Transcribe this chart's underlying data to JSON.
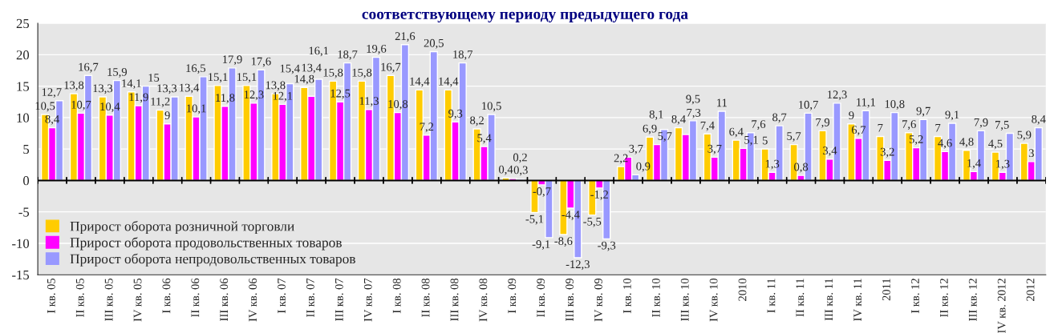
{
  "chart_data": {
    "type": "bar",
    "title": "соответствующему периоду предыдущего года",
    "categories": [
      "I кв. 05",
      "II кв. 05",
      "III кв. 05",
      "IV кв. 05",
      "I кв. 06",
      "II кв. 06",
      "III кв. 06",
      "IV кв. 06",
      "I кв. 07",
      "II кв. 07",
      "III кв. 07",
      "IV кв. 07",
      "I кв. 08",
      "II кв. 08",
      "III кв. 08",
      "IV кв. 08",
      "I кв. 09",
      "II кв. 09",
      "III кв. 09",
      "IV кв. 09",
      "I кв. 10",
      "II кв. 10",
      "III кв. 10",
      "IV кв. 10",
      "2010",
      "I кв. 11",
      "II кв. 11",
      "III кв. 11",
      "IV кв. 11",
      "2011",
      "I кв. 12",
      "II кв. 12",
      "III кв. 12",
      "IV кв. 2012",
      "2012"
    ],
    "series": [
      {
        "name": "Прирост оборота розничной торговли",
        "color": "#ffcc00",
        "values": [
          10.5,
          13.8,
          13.3,
          14.1,
          11.2,
          13.4,
          15.1,
          15.1,
          13.8,
          14.8,
          15.8,
          15.8,
          16.7,
          14.4,
          14.4,
          8.2,
          0.4,
          -5.1,
          -8.6,
          -5.5,
          2.2,
          6.9,
          8.4,
          7.4,
          6.4,
          5,
          5.7,
          7.9,
          9,
          7,
          7.6,
          7,
          4.8,
          4.5,
          5.9
        ],
        "value_labels": [
          "10,5",
          "13,8",
          "13,3",
          "14,1",
          "11,2",
          "13,4",
          "15,1",
          "15,1",
          "13,8",
          "14,8",
          "15,8",
          "15,8",
          "16,7",
          "14,4",
          "14,4",
          "8,2",
          "0,4",
          "-5,1",
          "-8,6",
          "-5,5",
          "2,2",
          "6,9",
          "8,4",
          "7,4",
          "6,4",
          "5",
          "5,7",
          "7,9",
          "9",
          "7",
          "7,6",
          "7",
          "4,8",
          "4,5",
          "5,9"
        ]
      },
      {
        "name": "Прирост оборота продовольственных товаров",
        "color": "#ff00ff",
        "values": [
          8.4,
          10.7,
          10.4,
          11.9,
          9,
          10.1,
          11.8,
          12.3,
          12.1,
          13.4,
          12.5,
          11.3,
          10.8,
          7.2,
          9.3,
          5.4,
          0.3,
          -0.7,
          -4.4,
          -1.2,
          3.7,
          5.7,
          7.3,
          3.7,
          5.1,
          1.3,
          0.8,
          3.4,
          6.7,
          3.2,
          5.2,
          4.6,
          1.4,
          1.3,
          3
        ],
        "value_labels": [
          "8,4",
          "10,7",
          "10,4",
          "11,9",
          "9",
          "10,1",
          "11,8",
          "12,3",
          "12,1",
          "13,4",
          "12,5",
          "11,3",
          "10,8",
          "7,2",
          "9,3",
          "5,4",
          "0,3",
          "-0,7",
          "-4,4",
          "-1,2",
          "3,7",
          "5,7",
          "7,3",
          "3,7",
          "5,1",
          "1,3",
          "0,8",
          "3,4",
          "6,7",
          "3,2",
          "5,2",
          "4,6",
          "1,4",
          "1,3",
          "3"
        ]
      },
      {
        "name": "Прирост оборота непродовольственных товаров",
        "color": "#9999ff",
        "values": [
          12.7,
          16.7,
          15.9,
          15,
          13.3,
          16.5,
          17.9,
          17.6,
          15.4,
          16.1,
          18.7,
          19.6,
          21.6,
          20.5,
          18.7,
          10.5,
          0.2,
          -9.1,
          -12.3,
          -9.3,
          0.9,
          8.1,
          9.5,
          11,
          7.6,
          8.7,
          10.7,
          12.3,
          11.1,
          10.8,
          9.7,
          9.1,
          7.9,
          7.5,
          8.4
        ],
        "value_labels": [
          "12,7",
          "16,7",
          "15,9",
          "15",
          "13,3",
          "16,5",
          "17,9",
          "17,6",
          "15,4",
          "16,1",
          "18,7",
          "19,6",
          "21,6",
          "20,5",
          "18,7",
          "10,5",
          "0,2",
          "-9,1",
          "-12,3",
          "-9,3",
          "0,9",
          "8,1",
          "9,5",
          "11",
          "7,6",
          "8,7",
          "10,7",
          "12,3",
          "11,1",
          "10,8",
          "9,7",
          "9,1",
          "7,9",
          "7,5",
          "8,4"
        ]
      }
    ],
    "ylim": [
      -15,
      25
    ],
    "yticks": [
      -15,
      -10,
      -5,
      0,
      5,
      10,
      15,
      20,
      25
    ],
    "grid": "y",
    "legend": "bottom left"
  }
}
